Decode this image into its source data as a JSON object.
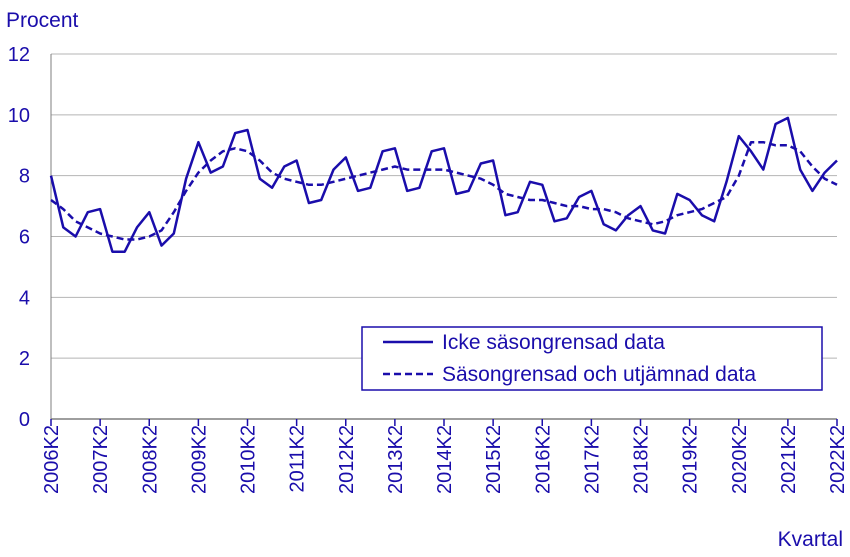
{
  "chart_data": {
    "type": "line",
    "ylabel": "Procent",
    "xlabel": "Kvartal",
    "ylim": [
      0,
      12
    ],
    "yticks": [
      "0",
      "2",
      "4",
      "6",
      "8",
      "10",
      "12"
    ],
    "grid": "horizontal",
    "legend_position": "bottom-right",
    "x_tick_labels": [
      "2006K2",
      "2007K2",
      "2008K2",
      "2009K2",
      "2010K2",
      "2011K2",
      "2012K2",
      "2013K2",
      "2014K2",
      "2015K2",
      "2016K2",
      "2017K2",
      "2018K2",
      "2019K2",
      "2020K2",
      "2021K2",
      "2022K2"
    ],
    "x": [
      "2006K2",
      "2006K3",
      "2006K4",
      "2007K1",
      "2007K2",
      "2007K3",
      "2007K4",
      "2008K1",
      "2008K2",
      "2008K3",
      "2008K4",
      "2009K1",
      "2009K2",
      "2009K3",
      "2009K4",
      "2010K1",
      "2010K2",
      "2010K3",
      "2010K4",
      "2011K1",
      "2011K2",
      "2011K3",
      "2011K4",
      "2012K1",
      "2012K2",
      "2012K3",
      "2012K4",
      "2013K1",
      "2013K2",
      "2013K3",
      "2013K4",
      "2014K1",
      "2014K2",
      "2014K3",
      "2014K4",
      "2015K1",
      "2015K2",
      "2015K3",
      "2015K4",
      "2016K1",
      "2016K2",
      "2016K3",
      "2016K4",
      "2017K1",
      "2017K2",
      "2017K3",
      "2017K4",
      "2018K1",
      "2018K2",
      "2018K3",
      "2018K4",
      "2019K1",
      "2019K2",
      "2019K3",
      "2019K4",
      "2020K1",
      "2020K2",
      "2020K3",
      "2020K4",
      "2021K1",
      "2021K2",
      "2021K3",
      "2021K4",
      "2022K1",
      "2022K2"
    ],
    "series": [
      {
        "name": "Icke säsongrensad data",
        "style": "solid",
        "values": [
          8.0,
          6.3,
          6.0,
          6.8,
          6.9,
          5.5,
          5.5,
          6.3,
          6.8,
          5.7,
          6.1,
          7.9,
          9.1,
          8.1,
          8.3,
          9.4,
          9.5,
          7.9,
          7.6,
          8.3,
          8.5,
          7.1,
          7.2,
          8.2,
          8.6,
          7.5,
          7.6,
          8.8,
          8.9,
          7.5,
          7.6,
          8.8,
          8.9,
          7.4,
          7.5,
          8.4,
          8.5,
          6.7,
          6.8,
          7.8,
          7.7,
          6.5,
          6.6,
          7.3,
          7.5,
          6.4,
          6.2,
          6.7,
          7.0,
          6.2,
          6.1,
          7.4,
          7.2,
          6.7,
          6.5,
          7.8,
          9.3,
          8.8,
          8.2,
          9.7,
          9.9,
          8.2,
          7.5,
          8.1,
          8.5
        ]
      },
      {
        "name": "Säsongrensad och utjämnad data",
        "style": "dashed",
        "values": [
          7.2,
          6.9,
          6.5,
          6.3,
          6.1,
          6.0,
          5.9,
          5.9,
          6.0,
          6.2,
          6.8,
          7.5,
          8.1,
          8.5,
          8.8,
          8.9,
          8.8,
          8.5,
          8.1,
          7.9,
          7.8,
          7.7,
          7.7,
          7.8,
          7.9,
          8.0,
          8.1,
          8.2,
          8.3,
          8.2,
          8.2,
          8.2,
          8.2,
          8.1,
          8.0,
          7.9,
          7.7,
          7.4,
          7.3,
          7.2,
          7.2,
          7.1,
          7.0,
          7.0,
          6.9,
          6.9,
          6.8,
          6.6,
          6.5,
          6.4,
          6.5,
          6.7,
          6.8,
          6.9,
          7.1,
          7.3,
          8.0,
          9.1,
          9.1,
          9.0,
          9.0,
          8.8,
          8.3,
          7.9,
          7.7
        ]
      }
    ]
  },
  "colors": {
    "line": "#1a0dab",
    "grid": "#b4b4b4",
    "frame": "#7f7f7f"
  }
}
